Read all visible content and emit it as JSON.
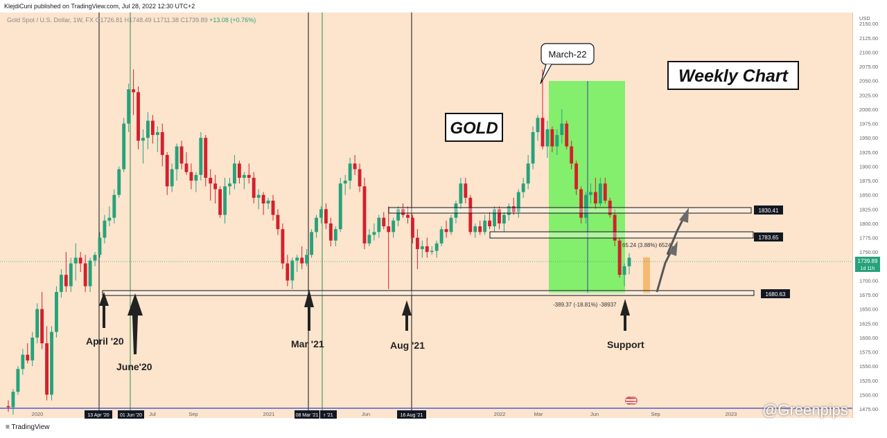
{
  "header": {
    "publisher_line": "KlejdiCuni published on TradingView.com, Jul 28, 2022 12:30 UTC+2"
  },
  "symbol": {
    "name": "Gold Spot / U.S. Dollar, 1W, FX",
    "open": "O1726.81",
    "high": "H1748.49",
    "low": "L1711.38",
    "close": "C1739.89",
    "change": "+13.08 (+0.76%)"
  },
  "labels": {
    "weekly_chart": "Weekly Chart",
    "gold": "GOLD",
    "march22": "March-22",
    "april20": "April '20",
    "june20": "June'20",
    "mar21": "Mar '21",
    "aug21": "Aug '21",
    "support": "Support",
    "measure_up": "65.24 (3.88%) 6524",
    "measure_down": "-389.37 (-18.81%) -38937"
  },
  "price_tags": {
    "p1830": "1830.41",
    "p1783": "1783.65",
    "p1680": "1680.63",
    "current": "1739.89",
    "countdown": "1d 11h"
  },
  "date_tags": [
    "13 Apr '20",
    "01 Jun '20",
    "08 Mar '21",
    "r '21",
    "16 Aug '21"
  ],
  "footer": {
    "tradingview": "TradingView",
    "watermark": "@Greenpips"
  },
  "colors": {
    "background": "#fce4cd",
    "bull": "#27a27a",
    "bear": "#d3202d",
    "green_box": "#6ef05c",
    "support_line": "#1a1a1a"
  },
  "chart_data": {
    "type": "candlestick",
    "title": "Gold Spot / U.S. Dollar, 1W, FX",
    "x_tick_labels": [
      "2020",
      "Jul",
      "Sep",
      "2021",
      "Jun",
      "2022",
      "Mar",
      "Jun",
      "Sep",
      "2023"
    ],
    "y_tick_labels": [
      "USD",
      "2150.00",
      "2125.00",
      "2100.00",
      "2075.00",
      "2050.00",
      "2025.00",
      "2000.00",
      "1975.00",
      "1950.00",
      "1925.00",
      "1900.00",
      "1875.00",
      "1850.00",
      "1825.00",
      "1800.00",
      "1775.00",
      "1750.00",
      "1725.00",
      "1700.00",
      "1675.00",
      "1650.00",
      "1625.00",
      "1600.00",
      "1575.00",
      "1550.00",
      "1525.00",
      "1500.00",
      "1475.00"
    ],
    "ylim": [
      1475,
      2160
    ],
    "levels": [
      1830.41,
      1783.65,
      1680.63
    ],
    "candles": [
      {
        "o": 1480,
        "h": 1490,
        "l": 1470,
        "c": 1478
      },
      {
        "o": 1478,
        "h": 1510,
        "l": 1465,
        "c": 1505
      },
      {
        "o": 1505,
        "h": 1550,
        "l": 1500,
        "c": 1545
      },
      {
        "o": 1545,
        "h": 1580,
        "l": 1535,
        "c": 1570
      },
      {
        "o": 1570,
        "h": 1590,
        "l": 1555,
        "c": 1560
      },
      {
        "o": 1560,
        "h": 1610,
        "l": 1550,
        "c": 1600
      },
      {
        "o": 1600,
        "h": 1660,
        "l": 1590,
        "c": 1650
      },
      {
        "o": 1650,
        "h": 1680,
        "l": 1580,
        "c": 1590
      },
      {
        "o": 1590,
        "h": 1620,
        "l": 1490,
        "c": 1500
      },
      {
        "o": 1500,
        "h": 1620,
        "l": 1490,
        "c": 1610
      },
      {
        "o": 1610,
        "h": 1690,
        "l": 1600,
        "c": 1680
      },
      {
        "o": 1680,
        "h": 1720,
        "l": 1670,
        "c": 1710
      },
      {
        "o": 1710,
        "h": 1750,
        "l": 1680,
        "c": 1690
      },
      {
        "o": 1690,
        "h": 1740,
        "l": 1680,
        "c": 1730
      },
      {
        "o": 1730,
        "h": 1765,
        "l": 1700,
        "c": 1740
      },
      {
        "o": 1740,
        "h": 1750,
        "l": 1715,
        "c": 1730
      },
      {
        "o": 1730,
        "h": 1745,
        "l": 1680,
        "c": 1690
      },
      {
        "o": 1690,
        "h": 1740,
        "l": 1680,
        "c": 1735
      },
      {
        "o": 1735,
        "h": 1750,
        "l": 1725,
        "c": 1745
      },
      {
        "o": 1745,
        "h": 1785,
        "l": 1740,
        "c": 1775
      },
      {
        "o": 1775,
        "h": 1815,
        "l": 1765,
        "c": 1805
      },
      {
        "o": 1805,
        "h": 1830,
        "l": 1795,
        "c": 1810
      },
      {
        "o": 1810,
        "h": 1860,
        "l": 1800,
        "c": 1850
      },
      {
        "o": 1850,
        "h": 1900,
        "l": 1845,
        "c": 1895
      },
      {
        "o": 1895,
        "h": 1985,
        "l": 1890,
        "c": 1975
      },
      {
        "o": 1975,
        "h": 2045,
        "l": 1960,
        "c": 2035
      },
      {
        "o": 2035,
        "h": 2070,
        "l": 1990,
        "c": 2030
      },
      {
        "o": 2030,
        "h": 2040,
        "l": 1930,
        "c": 1945
      },
      {
        "o": 1945,
        "h": 1965,
        "l": 1905,
        "c": 1950
      },
      {
        "o": 1950,
        "h": 1995,
        "l": 1930,
        "c": 1980
      },
      {
        "o": 1980,
        "h": 1990,
        "l": 1940,
        "c": 1955
      },
      {
        "o": 1955,
        "h": 1970,
        "l": 1925,
        "c": 1960
      },
      {
        "o": 1960,
        "h": 1975,
        "l": 1900,
        "c": 1920
      },
      {
        "o": 1920,
        "h": 1925,
        "l": 1850,
        "c": 1865
      },
      {
        "o": 1865,
        "h": 1905,
        "l": 1855,
        "c": 1895
      },
      {
        "o": 1895,
        "h": 1940,
        "l": 1875,
        "c": 1935
      },
      {
        "o": 1935,
        "h": 1945,
        "l": 1895,
        "c": 1905
      },
      {
        "o": 1905,
        "h": 1925,
        "l": 1885,
        "c": 1890
      },
      {
        "o": 1890,
        "h": 1905,
        "l": 1860,
        "c": 1875
      },
      {
        "o": 1875,
        "h": 1890,
        "l": 1855,
        "c": 1885
      },
      {
        "o": 1885,
        "h": 1960,
        "l": 1875,
        "c": 1950
      },
      {
        "o": 1950,
        "h": 1955,
        "l": 1865,
        "c": 1880
      },
      {
        "o": 1880,
        "h": 1895,
        "l": 1840,
        "c": 1870
      },
      {
        "o": 1870,
        "h": 1885,
        "l": 1835,
        "c": 1860
      },
      {
        "o": 1860,
        "h": 1865,
        "l": 1810,
        "c": 1815
      },
      {
        "o": 1815,
        "h": 1880,
        "l": 1800,
        "c": 1865
      },
      {
        "o": 1865,
        "h": 1880,
        "l": 1850,
        "c": 1870
      },
      {
        "o": 1870,
        "h": 1920,
        "l": 1860,
        "c": 1905
      },
      {
        "o": 1905,
        "h": 1910,
        "l": 1870,
        "c": 1880
      },
      {
        "o": 1880,
        "h": 1890,
        "l": 1860,
        "c": 1885
      },
      {
        "o": 1885,
        "h": 1905,
        "l": 1870,
        "c": 1880
      },
      {
        "o": 1880,
        "h": 1890,
        "l": 1835,
        "c": 1845
      },
      {
        "o": 1845,
        "h": 1860,
        "l": 1825,
        "c": 1850
      },
      {
        "o": 1850,
        "h": 1855,
        "l": 1815,
        "c": 1835
      },
      {
        "o": 1835,
        "h": 1845,
        "l": 1825,
        "c": 1840
      },
      {
        "o": 1840,
        "h": 1850,
        "l": 1805,
        "c": 1815
      },
      {
        "o": 1815,
        "h": 1825,
        "l": 1780,
        "c": 1790
      },
      {
        "o": 1790,
        "h": 1800,
        "l": 1720,
        "c": 1730
      },
      {
        "o": 1730,
        "h": 1745,
        "l": 1690,
        "c": 1700
      },
      {
        "o": 1700,
        "h": 1740,
        "l": 1685,
        "c": 1735
      },
      {
        "o": 1735,
        "h": 1745,
        "l": 1715,
        "c": 1740
      },
      {
        "o": 1740,
        "h": 1760,
        "l": 1720,
        "c": 1730
      },
      {
        "o": 1730,
        "h": 1755,
        "l": 1725,
        "c": 1745
      },
      {
        "o": 1745,
        "h": 1790,
        "l": 1740,
        "c": 1785
      },
      {
        "o": 1785,
        "h": 1815,
        "l": 1775,
        "c": 1810
      },
      {
        "o": 1810,
        "h": 1830,
        "l": 1800,
        "c": 1825
      },
      {
        "o": 1825,
        "h": 1835,
        "l": 1790,
        "c": 1800
      },
      {
        "o": 1800,
        "h": 1810,
        "l": 1760,
        "c": 1770
      },
      {
        "o": 1770,
        "h": 1795,
        "l": 1760,
        "c": 1790
      },
      {
        "o": 1790,
        "h": 1880,
        "l": 1785,
        "c": 1870
      },
      {
        "o": 1870,
        "h": 1885,
        "l": 1850,
        "c": 1875
      },
      {
        "o": 1875,
        "h": 1915,
        "l": 1860,
        "c": 1905
      },
      {
        "o": 1905,
        "h": 1920,
        "l": 1885,
        "c": 1895
      },
      {
        "o": 1895,
        "h": 1905,
        "l": 1855,
        "c": 1865
      },
      {
        "o": 1865,
        "h": 1880,
        "l": 1755,
        "c": 1765
      },
      {
        "o": 1765,
        "h": 1790,
        "l": 1760,
        "c": 1780
      },
      {
        "o": 1780,
        "h": 1800,
        "l": 1770,
        "c": 1785
      },
      {
        "o": 1785,
        "h": 1815,
        "l": 1775,
        "c": 1810
      },
      {
        "o": 1810,
        "h": 1820,
        "l": 1790,
        "c": 1795
      },
      {
        "o": 1795,
        "h": 1830,
        "l": 1685,
        "c": 1785
      },
      {
        "o": 1785,
        "h": 1810,
        "l": 1775,
        "c": 1805
      },
      {
        "o": 1805,
        "h": 1830,
        "l": 1795,
        "c": 1825
      },
      {
        "o": 1825,
        "h": 1835,
        "l": 1810,
        "c": 1815
      },
      {
        "o": 1815,
        "h": 1830,
        "l": 1800,
        "c": 1810
      },
      {
        "o": 1810,
        "h": 1815,
        "l": 1765,
        "c": 1775
      },
      {
        "o": 1775,
        "h": 1790,
        "l": 1720,
        "c": 1755
      },
      {
        "o": 1755,
        "h": 1770,
        "l": 1740,
        "c": 1760
      },
      {
        "o": 1760,
        "h": 1775,
        "l": 1740,
        "c": 1750
      },
      {
        "o": 1750,
        "h": 1760,
        "l": 1745,
        "c": 1752
      },
      {
        "o": 1752,
        "h": 1770,
        "l": 1740,
        "c": 1765
      },
      {
        "o": 1765,
        "h": 1795,
        "l": 1760,
        "c": 1790
      },
      {
        "o": 1790,
        "h": 1805,
        "l": 1775,
        "c": 1785
      },
      {
        "o": 1785,
        "h": 1815,
        "l": 1780,
        "c": 1810
      },
      {
        "o": 1810,
        "h": 1840,
        "l": 1800,
        "c": 1835
      },
      {
        "o": 1835,
        "h": 1880,
        "l": 1825,
        "c": 1870
      },
      {
        "o": 1870,
        "h": 1880,
        "l": 1835,
        "c": 1845
      },
      {
        "o": 1845,
        "h": 1850,
        "l": 1780,
        "c": 1785
      },
      {
        "o": 1785,
        "h": 1800,
        "l": 1775,
        "c": 1795
      },
      {
        "o": 1795,
        "h": 1805,
        "l": 1780,
        "c": 1785
      },
      {
        "o": 1785,
        "h": 1815,
        "l": 1780,
        "c": 1805
      },
      {
        "o": 1805,
        "h": 1820,
        "l": 1790,
        "c": 1795
      },
      {
        "o": 1795,
        "h": 1830,
        "l": 1785,
        "c": 1825
      },
      {
        "o": 1825,
        "h": 1830,
        "l": 1790,
        "c": 1800
      },
      {
        "o": 1800,
        "h": 1820,
        "l": 1785,
        "c": 1815
      },
      {
        "o": 1815,
        "h": 1835,
        "l": 1805,
        "c": 1830
      },
      {
        "o": 1830,
        "h": 1845,
        "l": 1815,
        "c": 1820
      },
      {
        "o": 1820,
        "h": 1860,
        "l": 1810,
        "c": 1855
      },
      {
        "o": 1855,
        "h": 1880,
        "l": 1845,
        "c": 1870
      },
      {
        "o": 1870,
        "h": 1920,
        "l": 1860,
        "c": 1905
      },
      {
        "o": 1905,
        "h": 1970,
        "l": 1895,
        "c": 1960
      },
      {
        "o": 1960,
        "h": 1990,
        "l": 1945,
        "c": 1985
      },
      {
        "o": 1985,
        "h": 2070,
        "l": 1930,
        "c": 1935
      },
      {
        "o": 1935,
        "h": 1980,
        "l": 1915,
        "c": 1965
      },
      {
        "o": 1965,
        "h": 1970,
        "l": 1925,
        "c": 1935
      },
      {
        "o": 1935,
        "h": 1965,
        "l": 1920,
        "c": 1955
      },
      {
        "o": 1955,
        "h": 2000,
        "l": 1940,
        "c": 1975
      },
      {
        "o": 1975,
        "h": 1980,
        "l": 1930,
        "c": 1935
      },
      {
        "o": 1935,
        "h": 1945,
        "l": 1895,
        "c": 1905
      },
      {
        "o": 1905,
        "h": 1910,
        "l": 1850,
        "c": 1860
      },
      {
        "o": 1860,
        "h": 1865,
        "l": 1800,
        "c": 1810
      },
      {
        "o": 1810,
        "h": 1855,
        "l": 1800,
        "c": 1850
      },
      {
        "o": 1850,
        "h": 1870,
        "l": 1835,
        "c": 1855
      },
      {
        "o": 1855,
        "h": 1880,
        "l": 1825,
        "c": 1835
      },
      {
        "o": 1835,
        "h": 1880,
        "l": 1830,
        "c": 1870
      },
      {
        "o": 1870,
        "h": 1880,
        "l": 1835,
        "c": 1840
      },
      {
        "o": 1840,
        "h": 1845,
        "l": 1810,
        "c": 1815
      },
      {
        "o": 1815,
        "h": 1825,
        "l": 1760,
        "c": 1770
      },
      {
        "o": 1770,
        "h": 1775,
        "l": 1705,
        "c": 1710
      },
      {
        "o": 1710,
        "h": 1730,
        "l": 1690,
        "c": 1725
      },
      {
        "o": 1725,
        "h": 1748,
        "l": 1711,
        "c": 1740
      }
    ]
  }
}
